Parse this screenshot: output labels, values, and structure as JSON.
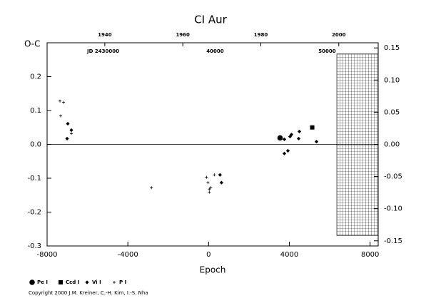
{
  "chart_data": {
    "type": "scatter",
    "title": "CI Aur",
    "xlabel": "Epoch",
    "ylabel": "O-C",
    "footnote": "Copyright 2000 J.M. Kreiner, C.-H. Kim, I.-S. Nha",
    "xlim": [
      -8000,
      8400
    ],
    "xticks": [
      -8000,
      -4000,
      0,
      4000,
      8000
    ],
    "ylim": [
      -0.3,
      0.3
    ],
    "yticks": [
      -0.3,
      -0.2,
      -0.1,
      {
        "value": 0,
        "label": "0.0"
      },
      0.1,
      0.2
    ],
    "y2lim": [
      -0.158,
      0.158
    ],
    "y2ticks": [
      -0.15,
      {
        "value": -0.1,
        "label": "-0.10"
      },
      -0.05,
      {
        "value": 0,
        "label": "0.00"
      },
      0.05,
      {
        "value": 0.1,
        "label": "0.10"
      },
      0.15
    ],
    "x2lim": [
      1925.2,
      2010.1
    ],
    "x2ticks": [
      1940,
      1960,
      1980,
      2000
    ],
    "jdlim": [
      2425000,
      2454557
    ],
    "jdticks": [
      {
        "value": 2430000,
        "label": "JD 2430000"
      },
      {
        "value": 2440000,
        "label": "40000"
      },
      {
        "value": 2450000,
        "label": "50000"
      }
    ],
    "reference_line": 0,
    "region": {
      "x": [
        6350,
        8400
      ],
      "y": [
        -0.269,
        0.267
      ]
    },
    "series": [
      {
        "name": "Pe I",
        "marker": "circle",
        "color": "#000000",
        "x": [
          3540
        ],
        "values": [
          0.019
        ]
      },
      {
        "name": "Ccd I",
        "marker": "square",
        "color": "#000000",
        "x": [
          5133
        ],
        "values": [
          0.05
        ]
      },
      {
        "name": "Vi I",
        "marker": "diamond",
        "color": "#000000",
        "x": [
          -6974,
          -6797,
          -7009,
          566,
          637,
          3752,
          3929,
          3752,
          4035,
          4106,
          4460,
          4496,
          5345
        ],
        "values": [
          0.061,
          0.042,
          0.017,
          -0.09,
          -0.113,
          -0.027,
          -0.019,
          0.015,
          0.023,
          0.029,
          0.017,
          0.038,
          0.008
        ]
      },
      {
        "name": "P I",
        "marker": "plus",
        "color": "#000000",
        "x": [
          -7363,
          -7186,
          -7328,
          -6797,
          -2832,
          -106,
          -35,
          35,
          106,
          283,
          35
        ],
        "values": [
          0.128,
          0.124,
          0.084,
          0.032,
          -0.128,
          -0.097,
          -0.113,
          -0.132,
          -0.128,
          -0.09,
          -0.141
        ]
      }
    ]
  }
}
